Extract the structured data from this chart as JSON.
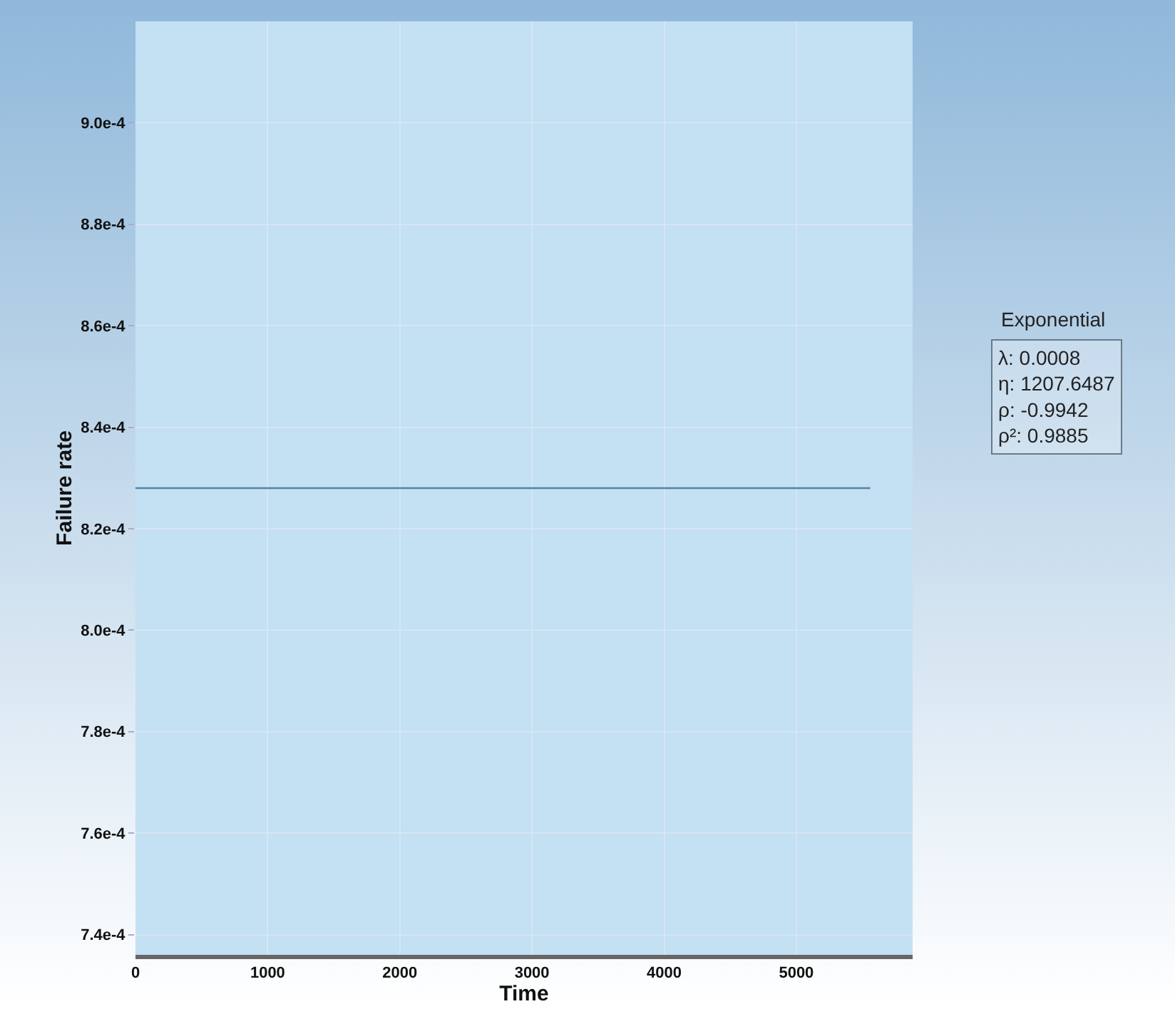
{
  "chart_data": {
    "type": "line",
    "xlabel": "Time",
    "ylabel": "Failure rate",
    "x": [
      0,
      5560
    ],
    "series": [
      {
        "color": "#4f86a8",
        "values": [
          0.000828,
          0.000828
        ]
      }
    ],
    "xlim": [
      0,
      5880
    ],
    "xticks": [
      0,
      1000,
      2000,
      3000,
      4000,
      5000
    ],
    "ylim": [
      0.000736,
      0.00092
    ],
    "yticks": [
      {
        "value": 0.00074,
        "label": "7.4e-4"
      },
      {
        "value": 0.00076,
        "label": "7.6e-4"
      },
      {
        "value": 0.00078,
        "label": "7.8e-4"
      },
      {
        "value": 0.0008,
        "label": "8.0e-4"
      },
      {
        "value": 0.00082,
        "label": "8.2e-4"
      },
      {
        "value": 0.00084,
        "label": "8.4e-4"
      },
      {
        "value": 0.00086,
        "label": "8.6e-4"
      },
      {
        "value": 0.00088,
        "label": "8.8e-4"
      },
      {
        "value": 0.0009,
        "label": "9.0e-4"
      }
    ],
    "grid": true,
    "marker": "none",
    "line_style": "solid",
    "legend_title": "Exponential",
    "annotations": [
      "λ: 0.0008",
      "η: 1207.6487",
      "ρ: -0.9942",
      "ρ²: 0.9885"
    ]
  }
}
